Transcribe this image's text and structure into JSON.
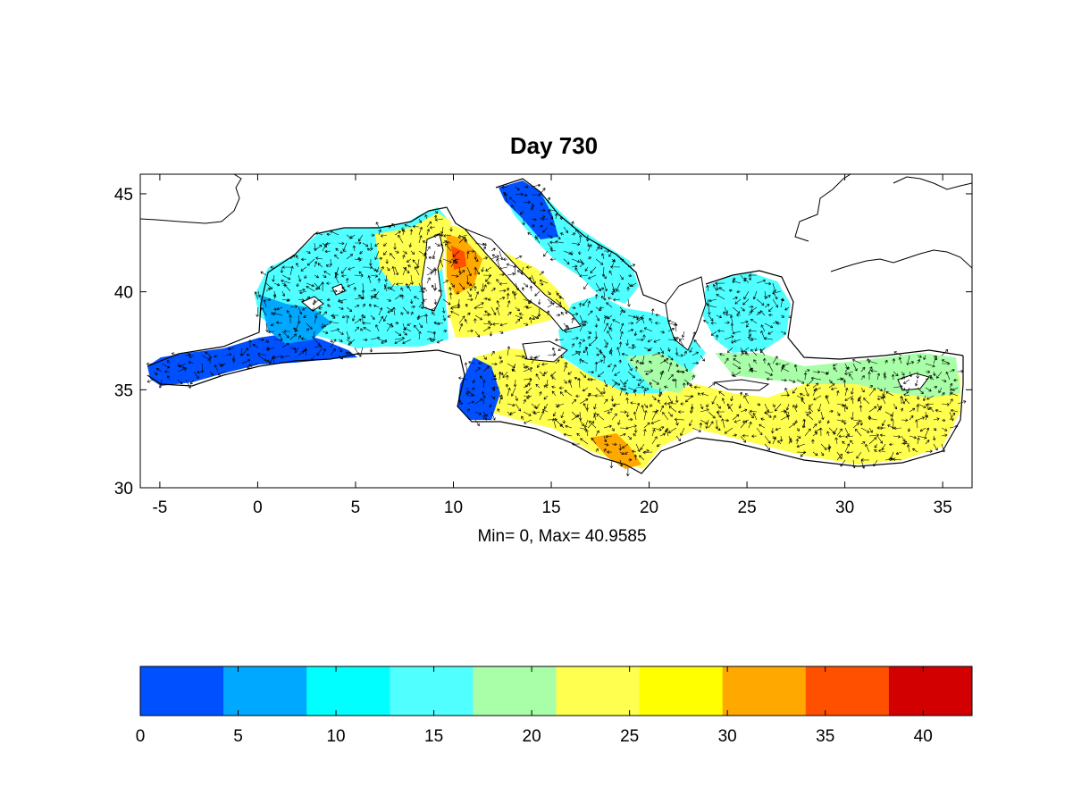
{
  "figure": {
    "title": "Day  730",
    "stats_label": "Min= 0,  Max= 40.9585"
  },
  "map": {
    "x_ticks": [
      -5,
      0,
      5,
      10,
      15,
      20,
      25,
      30,
      35
    ],
    "y_ticks": [
      30,
      35,
      40,
      45
    ],
    "xlim": [
      -6,
      36.5
    ],
    "ylim": [
      30,
      46
    ],
    "land_color": "#ffffff",
    "coast_color": "#000000",
    "arrow_color": "#000000"
  },
  "colorbar": {
    "ticks": [
      0,
      5,
      10,
      15,
      20,
      25,
      30,
      35,
      40
    ],
    "range": [
      0,
      42.5
    ],
    "colors": [
      "#0050ff",
      "#00a8ff",
      "#00ffff",
      "#50ffff",
      "#a8ffa8",
      "#ffff50",
      "#ffff00",
      "#ffa800",
      "#ff5000",
      "#d20000"
    ]
  }
}
